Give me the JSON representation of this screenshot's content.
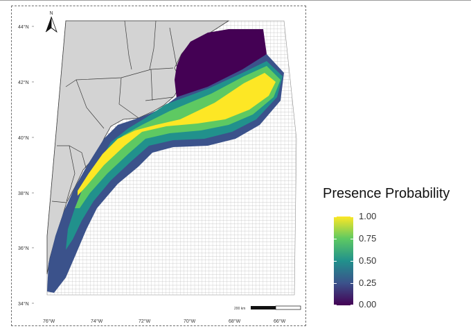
{
  "map": {
    "north_arrow": {
      "label": "N"
    },
    "lat_labels": [
      "44°N",
      "42°N",
      "40°N",
      "38°N",
      "36°N",
      "34°N"
    ],
    "lon_labels": [
      "76°W",
      "74°W",
      "72°W",
      "70°W",
      "68°W",
      "66°W"
    ],
    "scale_bar": {
      "label": "200 km"
    },
    "colors": {
      "land": "#d3d3d3",
      "grid": "#b9b9b9",
      "border": "#3a3a3a"
    }
  },
  "legend": {
    "title": "Presence Probability",
    "ticks": [
      "1.00",
      "0.75",
      "0.50",
      "0.25",
      "0.00"
    ],
    "colormap": "viridis"
  }
}
